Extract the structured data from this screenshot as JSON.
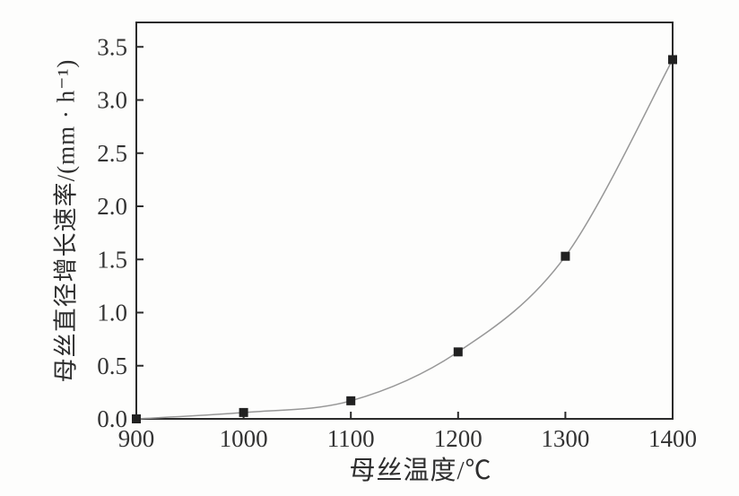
{
  "figure": {
    "background": "#fdfdfc"
  },
  "chart_data": {
    "type": "line",
    "title": "",
    "xlabel": "母丝温度/℃",
    "ylabel": "母丝直径增长速率/(mm · h⁻¹)",
    "x": [
      900,
      1000,
      1100,
      1200,
      1300,
      1400
    ],
    "values": [
      0.0,
      0.06,
      0.17,
      0.63,
      1.53,
      3.38
    ],
    "series_name": "母丝直径增长速率",
    "x_tick_labels": [
      "900",
      "1000",
      "1100",
      "1200",
      "1300",
      "1400"
    ],
    "y_ticks": [
      0,
      0.5,
      1.0,
      1.5,
      2.0,
      2.5,
      3.0,
      3.5
    ],
    "y_tick_labels": [
      "0.0",
      "0.5",
      "1.0",
      "1.5",
      "2.0",
      "2.5",
      "3.0",
      "3.5"
    ],
    "xlim": [
      900,
      1400
    ],
    "ylim": [
      0,
      3.73
    ],
    "grid": false,
    "legend": null,
    "marker": "filled-square",
    "colors": {
      "frame": "#2b2b2b",
      "line": "#979797",
      "marker": "#212121",
      "text": "#333333"
    }
  }
}
